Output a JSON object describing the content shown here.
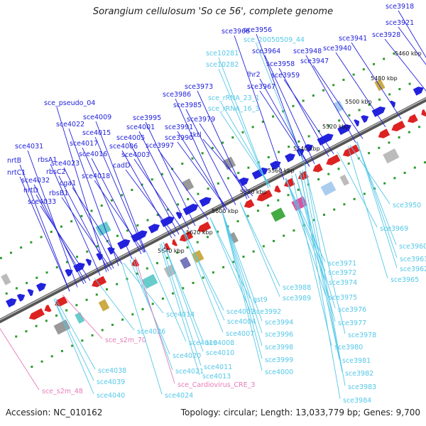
{
  "title": "Sorangium cellulosum 'So ce 56', complete genome",
  "footer": {
    "accession": "Accession: NC_010162",
    "stats": "Topology: circular; Length: 13,033,779 bp; Genes: 9,700"
  },
  "colors": {
    "forward": "#2222dd",
    "reverse": "#dd2222",
    "rna": "#55c8e8",
    "pseudo": "#e87ab8",
    "backbone": "#777777",
    "tick": "#2c9a2c"
  },
  "scale_labels": [
    "5460 kbp",
    "5480 kbp",
    "5500 kbp",
    "5520 kbp",
    "5540 kbp",
    "5560 kbp",
    "5580 kbp",
    "5600 kbp",
    "5620 kbp",
    "5640 kbp"
  ],
  "top_labels": [
    {
      "text": "sce3918",
      "c": "f"
    },
    {
      "text": "sce3921",
      "c": "f"
    },
    {
      "text": "sce3928",
      "c": "f"
    },
    {
      "text": "sce3941",
      "c": "f"
    },
    {
      "text": "sce3940",
      "c": "f"
    },
    {
      "text": "sce3948",
      "c": "f"
    },
    {
      "text": "sce3947",
      "c": "f"
    },
    {
      "text": "sce3956",
      "c": "f"
    },
    {
      "text": "sce_20050509_44",
      "c": "r"
    },
    {
      "text": "sce3968",
      "c": "f"
    },
    {
      "text": "sce3964",
      "c": "f"
    },
    {
      "text": "sce10281",
      "c": "r"
    },
    {
      "text": "sce10282",
      "c": "r"
    },
    {
      "text": "sce3958",
      "c": "f"
    },
    {
      "text": "lhr2",
      "c": "f"
    },
    {
      "text": "sce3959",
      "c": "f"
    },
    {
      "text": "sce3967",
      "c": "f"
    },
    {
      "text": "sce3973",
      "c": "f"
    },
    {
      "text": "sce_rRNA_23_1",
      "c": "r"
    },
    {
      "text": "sce_rRNA_16_3",
      "c": "r"
    },
    {
      "text": "sce3986",
      "c": "f"
    },
    {
      "text": "sce3985",
      "c": "f"
    },
    {
      "text": "sce3979",
      "c": "f"
    },
    {
      "text": "sce_pseudo_04",
      "c": "f"
    },
    {
      "text": "sce4009",
      "c": "f"
    },
    {
      "text": "sce3995",
      "c": "f"
    },
    {
      "text": "sce4001",
      "c": "f"
    },
    {
      "text": "sce3991",
      "c": "f"
    },
    {
      "text": "sce4022",
      "c": "f"
    },
    {
      "text": "sce4015",
      "c": "f"
    },
    {
      "text": "sce4005",
      "c": "f"
    },
    {
      "text": "sce3990",
      "c": "f"
    },
    {
      "text": "tktl",
      "c": "f"
    },
    {
      "text": "sce4017",
      "c": "f"
    },
    {
      "text": "sce4006",
      "c": "f"
    },
    {
      "text": "sce3997",
      "c": "f"
    },
    {
      "text": "sce4031",
      "c": "f"
    },
    {
      "text": "sce4016",
      "c": "f"
    },
    {
      "text": "sce4003",
      "c": "f"
    },
    {
      "text": "nrtB",
      "c": "f"
    },
    {
      "text": "rbsA1",
      "c": "f"
    },
    {
      "text": "sce4023",
      "c": "f"
    },
    {
      "text": "cadD",
      "c": "f"
    },
    {
      "text": "nrtC1",
      "c": "f"
    },
    {
      "text": "rbsC2",
      "c": "f"
    },
    {
      "text": "sce4018",
      "c": "f"
    },
    {
      "text": "sce4032",
      "c": "f"
    },
    {
      "text": "cga1",
      "c": "f"
    },
    {
      "text": "nrtD",
      "c": "f"
    },
    {
      "text": "rbsB1",
      "c": "f"
    },
    {
      "text": "sce4033",
      "c": "f"
    }
  ],
  "bottom_labels": [
    {
      "text": "sce3950",
      "c": "r"
    },
    {
      "text": "sce3969",
      "c": "r"
    },
    {
      "text": "sce3960",
      "c": "r"
    },
    {
      "text": "sce3961",
      "c": "r"
    },
    {
      "text": "sce3962",
      "c": "r"
    },
    {
      "text": "sce3965",
      "c": "r"
    },
    {
      "text": "sce3971",
      "c": "r"
    },
    {
      "text": "sce3972",
      "c": "r"
    },
    {
      "text": "sce3974",
      "c": "r"
    },
    {
      "text": "sce3988",
      "c": "r"
    },
    {
      "text": "sce3989",
      "c": "r"
    },
    {
      "text": "sce3975",
      "c": "r"
    },
    {
      "text": "gst9",
      "c": "r"
    },
    {
      "text": "sce3992",
      "c": "r"
    },
    {
      "text": "sce3976",
      "c": "r"
    },
    {
      "text": "sce4002",
      "c": "r"
    },
    {
      "text": "sce4004",
      "c": "r"
    },
    {
      "text": "sce3994",
      "c": "r"
    },
    {
      "text": "sce3977",
      "c": "r"
    },
    {
      "text": "sce4014",
      "c": "r"
    },
    {
      "text": "sce3978",
      "c": "r"
    },
    {
      "text": "sce4007",
      "c": "r"
    },
    {
      "text": "sce3996",
      "c": "r"
    },
    {
      "text": "sce3980",
      "c": "r"
    },
    {
      "text": "sce4026",
      "c": "r"
    },
    {
      "text": "sce4008",
      "c": "r"
    },
    {
      "text": "sce3998",
      "c": "r"
    },
    {
      "text": "sce_s2m_70",
      "c": "p"
    },
    {
      "text": "sce4019",
      "c": "r"
    },
    {
      "text": "sce4010",
      "c": "r"
    },
    {
      "text": "sce3981",
      "c": "r"
    },
    {
      "text": "sce4020",
      "c": "r"
    },
    {
      "text": "sce3999",
      "c": "r"
    },
    {
      "text": "sce4011",
      "c": "r"
    },
    {
      "text": "sce4021",
      "c": "r"
    },
    {
      "text": "sce4000",
      "c": "r"
    },
    {
      "text": "sce3982",
      "c": "r"
    },
    {
      "text": "sce4013",
      "c": "r"
    },
    {
      "text": "sce4038",
      "c": "r"
    },
    {
      "text": "sce_Cardiovirus_CRE_3",
      "c": "p"
    },
    {
      "text": "sce3983",
      "c": "r"
    },
    {
      "text": "sce4039",
      "c": "r"
    },
    {
      "text": "sce4024",
      "c": "r"
    },
    {
      "text": "sce_s2m_48",
      "c": "p"
    },
    {
      "text": "sce4040",
      "c": "r"
    },
    {
      "text": "sce3984",
      "c": "r"
    }
  ]
}
